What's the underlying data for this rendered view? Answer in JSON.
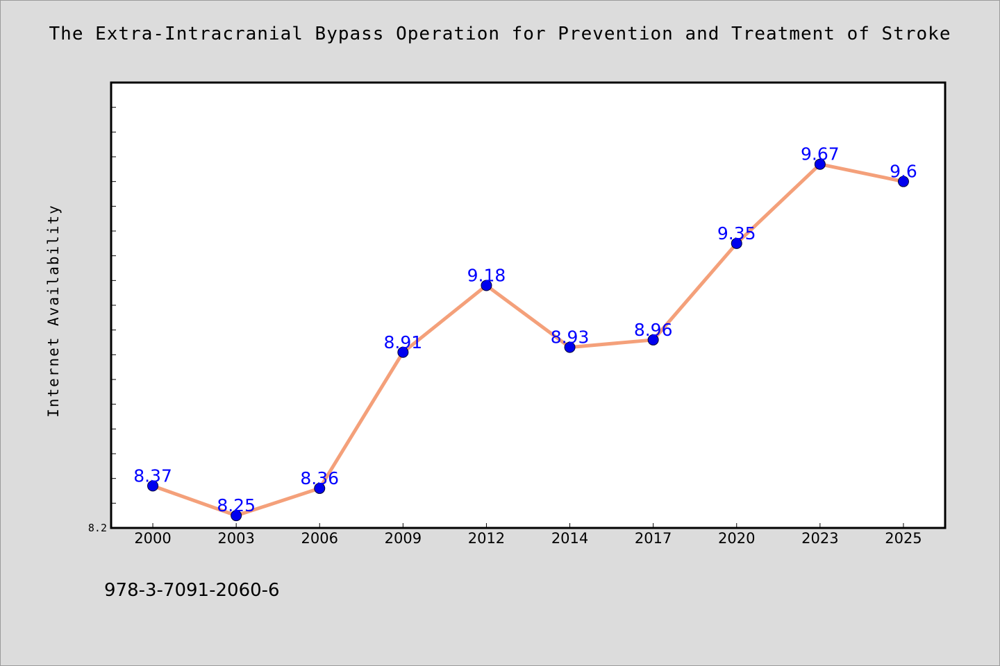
{
  "chart_data": {
    "type": "line",
    "title": "The Extra-Intracranial Bypass Operation for Prevention and Treatment of Stroke",
    "xlabel": "",
    "ylabel": "Internet Availability",
    "categories": [
      "2000",
      "2003",
      "2006",
      "2009",
      "2012",
      "2014",
      "2017",
      "2020",
      "2023",
      "2025"
    ],
    "series": [
      {
        "values": [
          8.37,
          8.25,
          8.36,
          8.91,
          9.18,
          8.93,
          8.96,
          9.35,
          9.67,
          9.6
        ],
        "labels": [
          "8.37",
          "8.25",
          "8.36",
          "8.91",
          "9.18",
          "8.93",
          "8.96",
          "9.35",
          "9.67",
          "9.6"
        ]
      }
    ],
    "ylim": [
      8.2,
      10.0
    ],
    "yticklabels": [
      "8.2"
    ],
    "grid": false,
    "line_color": "#f4a07a",
    "marker_color": "#0000ee",
    "data_label_color": "#0000ff",
    "background_color": "#dcdcdc",
    "plot_background_color": "#ffffff"
  },
  "footer": {
    "isbn": "978-3-7091-2060-6"
  }
}
